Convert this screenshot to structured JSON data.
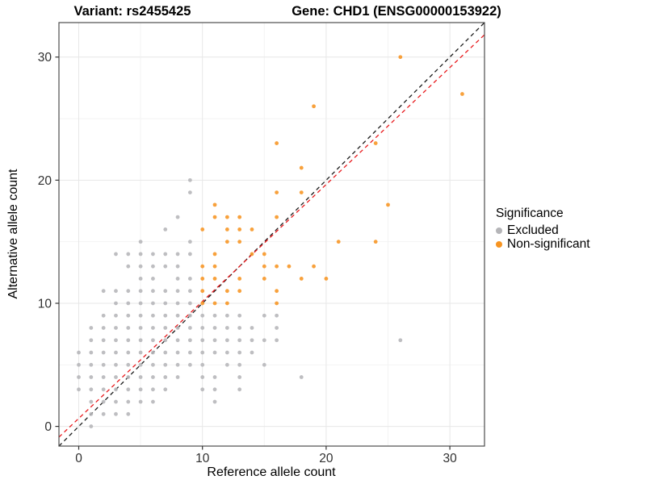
{
  "titles": {
    "variant": "Variant: rs2455425",
    "gene": "Gene: CHD1 (ENSG00000153922)"
  },
  "chart_data": {
    "type": "scatter",
    "xlabel": "Reference allele count",
    "ylabel": "Alternative allele count",
    "xlim": [
      -1.6,
      32.8
    ],
    "ylim": [
      -1.6,
      32.8
    ],
    "x_ticks": [
      0,
      10,
      20,
      30
    ],
    "y_ticks": [
      0,
      10,
      20,
      30
    ],
    "x_minor": [
      5,
      15,
      25
    ],
    "y_minor": [
      5,
      15,
      25
    ],
    "grid": {
      "major_color": "#e7e7e7",
      "minor_color": "#f2f2f2",
      "border_color": "#4d4d4d"
    },
    "lines": [
      {
        "name": "identity-line",
        "slope": 1,
        "intercept": 0,
        "color": "#1a1a1a",
        "dash": "5,4",
        "width": 1.3
      },
      {
        "name": "fit-line",
        "slope": 0.95,
        "intercept": 0.65,
        "color": "#e8191c",
        "dash": "5,4",
        "width": 1.3
      }
    ],
    "legend": {
      "title": "Significance",
      "items": [
        {
          "label": "Excluded",
          "color": "#b5b5b8"
        },
        {
          "label": "Non-significant",
          "color": "#f79421"
        }
      ]
    },
    "point_radius": 2.4,
    "series": [
      {
        "name": "Excluded",
        "color": "#b5b5b8",
        "points": [
          [
            1,
            0
          ],
          [
            1,
            1
          ],
          [
            2,
            1
          ],
          [
            3,
            1
          ],
          [
            4,
            1
          ],
          [
            1,
            2
          ],
          [
            2,
            2
          ],
          [
            3,
            2
          ],
          [
            4,
            2
          ],
          [
            5,
            2
          ],
          [
            6,
            2
          ],
          [
            11,
            2
          ],
          [
            0,
            3
          ],
          [
            1,
            3
          ],
          [
            2,
            3
          ],
          [
            3,
            3
          ],
          [
            4,
            3
          ],
          [
            5,
            3
          ],
          [
            6,
            3
          ],
          [
            7,
            3
          ],
          [
            10,
            3
          ],
          [
            11,
            3
          ],
          [
            13,
            3
          ],
          [
            0,
            4
          ],
          [
            1,
            4
          ],
          [
            2,
            4
          ],
          [
            3,
            4
          ],
          [
            4,
            4
          ],
          [
            5,
            4
          ],
          [
            6,
            4
          ],
          [
            7,
            4
          ],
          [
            8,
            4
          ],
          [
            10,
            4
          ],
          [
            11,
            4
          ],
          [
            13,
            4
          ],
          [
            18,
            4
          ],
          [
            0,
            5
          ],
          [
            1,
            5
          ],
          [
            2,
            5
          ],
          [
            3,
            5
          ],
          [
            4,
            5
          ],
          [
            5,
            5
          ],
          [
            6,
            5
          ],
          [
            7,
            5
          ],
          [
            8,
            5
          ],
          [
            9,
            5
          ],
          [
            10,
            5
          ],
          [
            12,
            5
          ],
          [
            13,
            5
          ],
          [
            15,
            5
          ],
          [
            0,
            6
          ],
          [
            1,
            6
          ],
          [
            2,
            6
          ],
          [
            3,
            6
          ],
          [
            4,
            6
          ],
          [
            5,
            6
          ],
          [
            6,
            6
          ],
          [
            7,
            6
          ],
          [
            8,
            6
          ],
          [
            9,
            6
          ],
          [
            10,
            6
          ],
          [
            11,
            6
          ],
          [
            12,
            6
          ],
          [
            13,
            6
          ],
          [
            14,
            6
          ],
          [
            1,
            7
          ],
          [
            2,
            7
          ],
          [
            3,
            7
          ],
          [
            4,
            7
          ],
          [
            5,
            7
          ],
          [
            6,
            7
          ],
          [
            7,
            7
          ],
          [
            8,
            7
          ],
          [
            9,
            7
          ],
          [
            10,
            7
          ],
          [
            11,
            7
          ],
          [
            12,
            7
          ],
          [
            13,
            7
          ],
          [
            14,
            7
          ],
          [
            15,
            7
          ],
          [
            16,
            7
          ],
          [
            26,
            7
          ],
          [
            1,
            8
          ],
          [
            2,
            8
          ],
          [
            3,
            8
          ],
          [
            4,
            8
          ],
          [
            5,
            8
          ],
          [
            6,
            8
          ],
          [
            7,
            8
          ],
          [
            8,
            8
          ],
          [
            9,
            8
          ],
          [
            10,
            8
          ],
          [
            11,
            8
          ],
          [
            12,
            8
          ],
          [
            13,
            8
          ],
          [
            14,
            8
          ],
          [
            16,
            8
          ],
          [
            2,
            9
          ],
          [
            3,
            9
          ],
          [
            4,
            9
          ],
          [
            5,
            9
          ],
          [
            6,
            9
          ],
          [
            7,
            9
          ],
          [
            8,
            9
          ],
          [
            9,
            9
          ],
          [
            10,
            9
          ],
          [
            11,
            9
          ],
          [
            12,
            9
          ],
          [
            13,
            9
          ],
          [
            15,
            9
          ],
          [
            16,
            9
          ],
          [
            3,
            10
          ],
          [
            4,
            10
          ],
          [
            5,
            10
          ],
          [
            6,
            10
          ],
          [
            7,
            10
          ],
          [
            8,
            10
          ],
          [
            9,
            10
          ],
          [
            2,
            11
          ],
          [
            3,
            11
          ],
          [
            4,
            11
          ],
          [
            5,
            11
          ],
          [
            6,
            11
          ],
          [
            7,
            11
          ],
          [
            8,
            11
          ],
          [
            9,
            11
          ],
          [
            5,
            12
          ],
          [
            6,
            12
          ],
          [
            8,
            12
          ],
          [
            9,
            12
          ],
          [
            4,
            13
          ],
          [
            5,
            13
          ],
          [
            6,
            13
          ],
          [
            7,
            13
          ],
          [
            8,
            13
          ],
          [
            3,
            14
          ],
          [
            4,
            14
          ],
          [
            5,
            14
          ],
          [
            6,
            14
          ],
          [
            7,
            14
          ],
          [
            8,
            14
          ],
          [
            9,
            14
          ],
          [
            5,
            15
          ],
          [
            9,
            15
          ],
          [
            7,
            16
          ],
          [
            8,
            17
          ],
          [
            9,
            19
          ],
          [
            9,
            20
          ]
        ]
      },
      {
        "name": "Non-significant",
        "color": "#f79421",
        "points": [
          [
            10,
            10
          ],
          [
            11,
            10
          ],
          [
            12,
            10
          ],
          [
            16,
            10
          ],
          [
            10,
            11
          ],
          [
            12,
            11
          ],
          [
            13,
            11
          ],
          [
            16,
            11
          ],
          [
            10,
            12
          ],
          [
            11,
            12
          ],
          [
            13,
            12
          ],
          [
            15,
            12
          ],
          [
            18,
            12
          ],
          [
            20,
            12
          ],
          [
            10,
            13
          ],
          [
            11,
            13
          ],
          [
            15,
            13
          ],
          [
            16,
            13
          ],
          [
            17,
            13
          ],
          [
            19,
            13
          ],
          [
            11,
            14
          ],
          [
            14,
            14
          ],
          [
            15,
            14
          ],
          [
            12,
            15
          ],
          [
            13,
            15
          ],
          [
            21,
            15
          ],
          [
            24,
            15
          ],
          [
            10,
            16
          ],
          [
            12,
            16
          ],
          [
            13,
            16
          ],
          [
            14,
            16
          ],
          [
            11,
            17
          ],
          [
            12,
            17
          ],
          [
            13,
            17
          ],
          [
            16,
            17
          ],
          [
            11,
            18
          ],
          [
            25,
            18
          ],
          [
            16,
            19
          ],
          [
            18,
            19
          ],
          [
            18,
            21
          ],
          [
            16,
            23
          ],
          [
            24,
            23
          ],
          [
            19,
            26
          ],
          [
            31,
            27
          ],
          [
            26,
            30
          ]
        ]
      }
    ]
  }
}
